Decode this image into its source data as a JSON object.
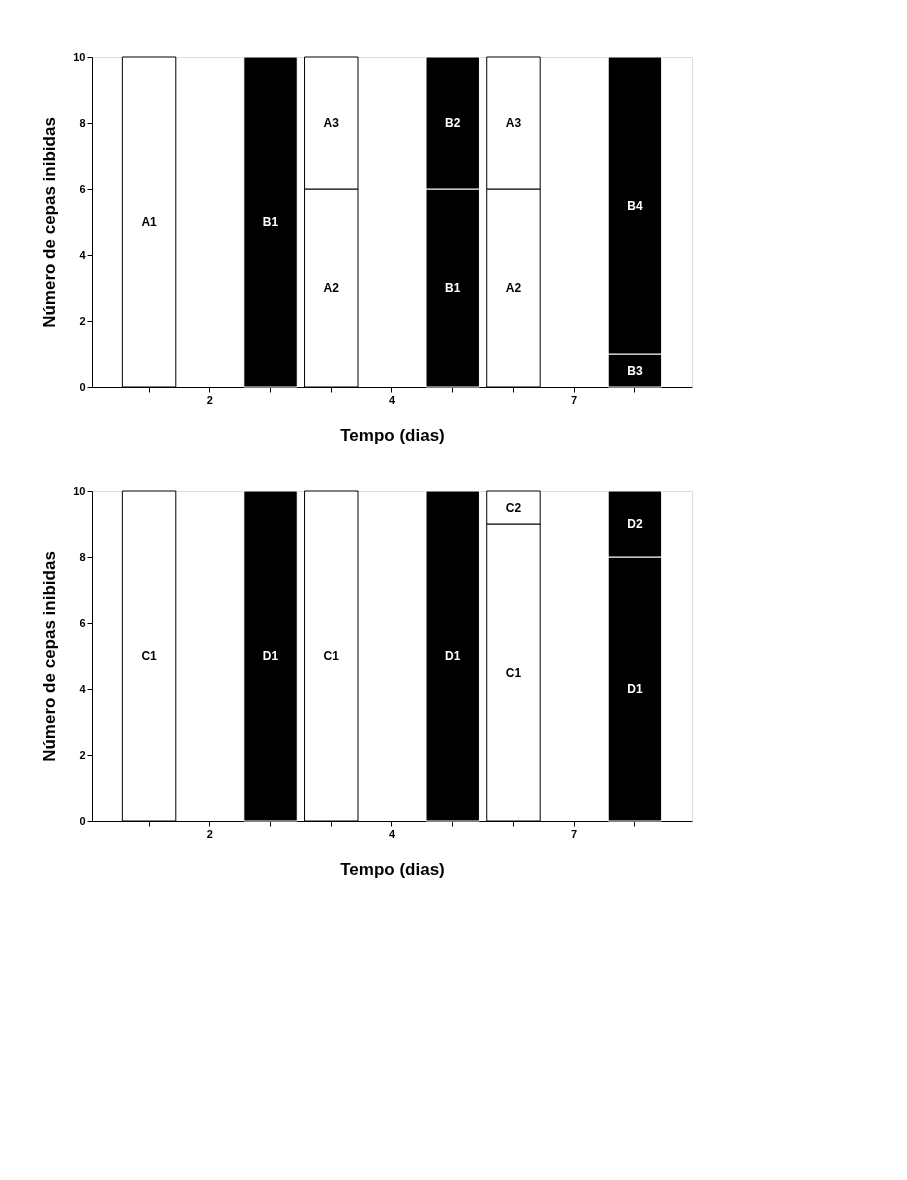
{
  "chart_data": [
    {
      "type": "bar",
      "stacked": true,
      "xlabel": "Tempo (dias)",
      "ylabel": "Número de cepas inibidas",
      "categories": [
        null,
        "2",
        null,
        null,
        "4",
        null,
        null,
        "7",
        null
      ],
      "ylim": [
        0,
        10
      ],
      "yticks": [
        0,
        2,
        4,
        6,
        8,
        10
      ],
      "grid": false,
      "legend": false,
      "series": [
        {
          "colors": [
            "#ffffff",
            "#ffffff",
            "#000000",
            "#ffffff",
            "#ffffff",
            "#000000",
            "#ffffff",
            "#ffffff",
            "#000000"
          ],
          "values": [
            10,
            null,
            10,
            6,
            null,
            6,
            6,
            null,
            1
          ],
          "value_labels": [
            "A1",
            null,
            "B1",
            "A2",
            null,
            "B1",
            "A2",
            null,
            "B3"
          ]
        },
        {
          "colors": [
            "#ffffff",
            "#ffffff",
            "#000000",
            "#ffffff",
            "#ffffff",
            "#000000",
            "#ffffff",
            "#ffffff",
            "#000000"
          ],
          "values": [
            null,
            null,
            null,
            4,
            null,
            4,
            4,
            null,
            9
          ],
          "value_labels": [
            null,
            null,
            null,
            "A3",
            null,
            "B2",
            "A3",
            null,
            "B4"
          ]
        }
      ]
    },
    {
      "type": "bar",
      "stacked": true,
      "xlabel": "Tempo (dias)",
      "ylabel": "Número de cepas inibidas",
      "categories": [
        null,
        "2",
        null,
        null,
        "4",
        null,
        null,
        "7",
        null
      ],
      "ylim": [
        0,
        10
      ],
      "yticks": [
        0,
        2,
        4,
        6,
        8,
        10
      ],
      "grid": false,
      "legend": false,
      "series": [
        {
          "colors": [
            "#ffffff",
            "#ffffff",
            "#000000",
            "#ffffff",
            "#ffffff",
            "#000000",
            "#ffffff",
            "#ffffff",
            "#000000"
          ],
          "values": [
            10,
            null,
            10,
            10,
            null,
            10,
            9,
            null,
            8
          ],
          "value_labels": [
            "C1",
            null,
            "D1",
            "C1",
            null,
            "D1",
            "C1",
            null,
            "D1"
          ]
        },
        {
          "colors": [
            "#ffffff",
            "#ffffff",
            "#000000",
            "#ffffff",
            "#ffffff",
            "#000000",
            "#ffffff",
            "#ffffff",
            "#000000"
          ],
          "values": [
            null,
            null,
            null,
            null,
            null,
            null,
            1,
            null,
            2
          ],
          "value_labels": [
            null,
            null,
            null,
            null,
            null,
            null,
            "C2",
            null,
            "D2"
          ]
        }
      ]
    }
  ]
}
